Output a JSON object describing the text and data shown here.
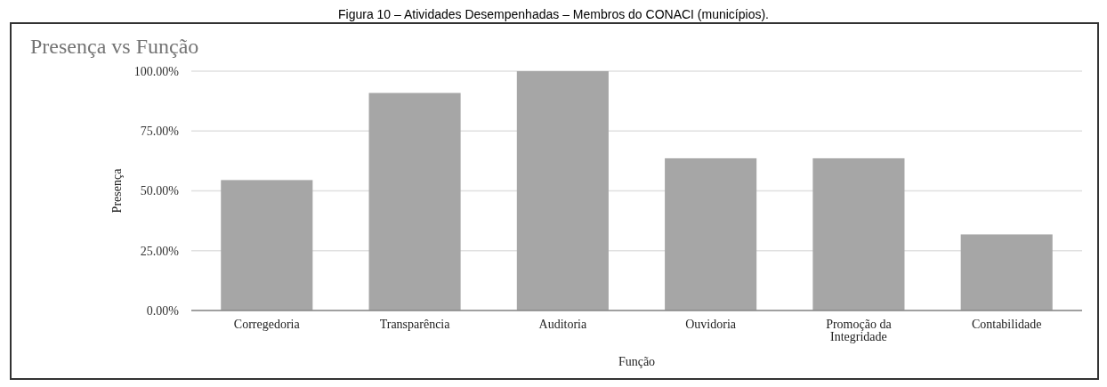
{
  "chart_data": {
    "type": "bar",
    "title": "Presença vs Função",
    "xlabel": "Função",
    "ylabel": "Presença",
    "annotations": [
      "Figura 10 – Atividades Desempenhadas – Membros do CONACI (municípios)."
    ],
    "categories": [
      "Corregedoria",
      "Transparência",
      "Auditoria",
      "Ouvidoria",
      "Promoção da Integridade",
      "Contabilidade"
    ],
    "values": [
      54.5,
      90.9,
      100,
      63.6,
      63.6,
      31.8
    ],
    "color": "#a6a6a6",
    "ylim": [
      0,
      100
    ],
    "yticks": [
      {
        "value": 0,
        "label": "0.00%"
      },
      {
        "value": 25,
        "label": "25.00%"
      },
      {
        "value": 50,
        "label": "50.00%"
      },
      {
        "value": 75,
        "label": "75.00%"
      },
      {
        "value": 100,
        "label": "100.00%"
      }
    ],
    "grid": "y"
  }
}
